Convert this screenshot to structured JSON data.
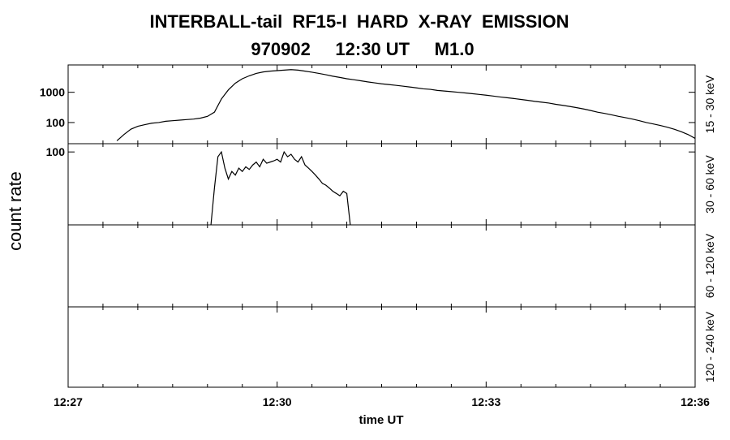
{
  "chart_data": [
    {
      "type": "line",
      "title": "INTERBALL-tail  RF15-I  HARD  X-RAY  EMISSION",
      "subtitle": "970902     12:30 UT     M1.0",
      "energy_band": "15 - 30 keV",
      "log": true,
      "color": "#000000",
      "ylim": [
        20,
        8000
      ],
      "yticks": [
        100,
        1000
      ],
      "x": [
        27.7,
        27.8,
        27.9,
        28.0,
        28.1,
        28.2,
        28.3,
        28.4,
        28.5,
        28.6,
        28.7,
        28.8,
        28.9,
        29.0,
        29.1,
        29.2,
        29.3,
        29.4,
        29.5,
        29.6,
        29.7,
        29.8,
        29.9,
        30.0,
        30.1,
        30.2,
        30.3,
        30.4,
        30.5,
        30.6,
        30.7,
        30.8,
        30.9,
        31.0,
        31.1,
        31.2,
        31.3,
        31.4,
        31.5,
        31.6,
        31.7,
        31.8,
        31.9,
        32.0,
        32.1,
        32.2,
        32.3,
        32.4,
        32.5,
        32.6,
        32.7,
        32.8,
        32.9,
        33.0,
        33.1,
        33.2,
        33.3,
        33.4,
        33.5,
        33.6,
        33.7,
        33.8,
        33.9,
        34.0,
        34.1,
        34.2,
        34.3,
        34.4,
        34.5,
        34.6,
        34.7,
        34.8,
        34.9,
        35.0,
        35.1,
        35.2,
        35.3,
        35.4,
        35.5,
        35.6,
        35.7,
        35.8,
        35.9,
        36.0
      ],
      "values": [
        25,
        40,
        60,
        75,
        85,
        95,
        100,
        110,
        115,
        120,
        125,
        130,
        140,
        160,
        220,
        600,
        1200,
        2000,
        2800,
        3500,
        4200,
        4700,
        5000,
        5200,
        5400,
        5600,
        5400,
        5000,
        4600,
        4200,
        3800,
        3400,
        3100,
        2800,
        2600,
        2400,
        2200,
        2050,
        1900,
        1800,
        1700,
        1600,
        1500,
        1400,
        1300,
        1250,
        1150,
        1100,
        1050,
        1000,
        950,
        900,
        850,
        800,
        750,
        700,
        660,
        620,
        580,
        540,
        500,
        470,
        440,
        400,
        370,
        340,
        310,
        280,
        250,
        220,
        200,
        180,
        160,
        145,
        130,
        115,
        100,
        90,
        80,
        70,
        60,
        50,
        40,
        30
      ]
    },
    {
      "type": "line",
      "ylabel": "count rate",
      "energy_band": "30 - 60 keV",
      "log": true,
      "color": "#000000",
      "ylim": [
        20,
        120
      ],
      "yticks": [
        100
      ],
      "x": [
        29.05,
        29.1,
        29.15,
        29.2,
        29.25,
        29.3,
        29.35,
        29.4,
        29.45,
        29.5,
        29.55,
        29.6,
        29.65,
        29.7,
        29.75,
        29.8,
        29.85,
        29.9,
        29.95,
        30.0,
        30.05,
        30.1,
        30.15,
        30.2,
        30.25,
        30.3,
        30.35,
        30.4,
        30.45,
        30.5,
        30.55,
        30.6,
        30.65,
        30.7,
        30.75,
        30.8,
        30.85,
        30.9,
        30.95,
        31.0,
        31.05
      ],
      "values": [
        20,
        45,
        90,
        100,
        70,
        55,
        65,
        60,
        70,
        65,
        72,
        68,
        75,
        80,
        72,
        85,
        78,
        80,
        82,
        85,
        80,
        100,
        90,
        95,
        85,
        80,
        90,
        75,
        70,
        65,
        60,
        55,
        50,
        48,
        45,
        42,
        40,
        38,
        42,
        40,
        20
      ]
    },
    {
      "type": "line",
      "energy_band": "60 - 120 keV"
    },
    {
      "type": "line",
      "energy_band": "120 - 240 keV",
      "xlabel": "time UT",
      "xlim": [
        27,
        36
      ],
      "xticks": [
        {
          "value": 27,
          "label": "12:27"
        },
        {
          "value": 30,
          "label": "12:30"
        },
        {
          "value": 33,
          "label": "12:33"
        },
        {
          "value": 36,
          "label": "12:36"
        }
      ],
      "xminorticks": [
        27.5,
        28,
        28.5,
        29,
        29.5,
        30.5,
        31,
        31.5,
        32,
        32.5,
        33.5,
        34,
        34.5,
        35,
        35.5
      ]
    }
  ]
}
